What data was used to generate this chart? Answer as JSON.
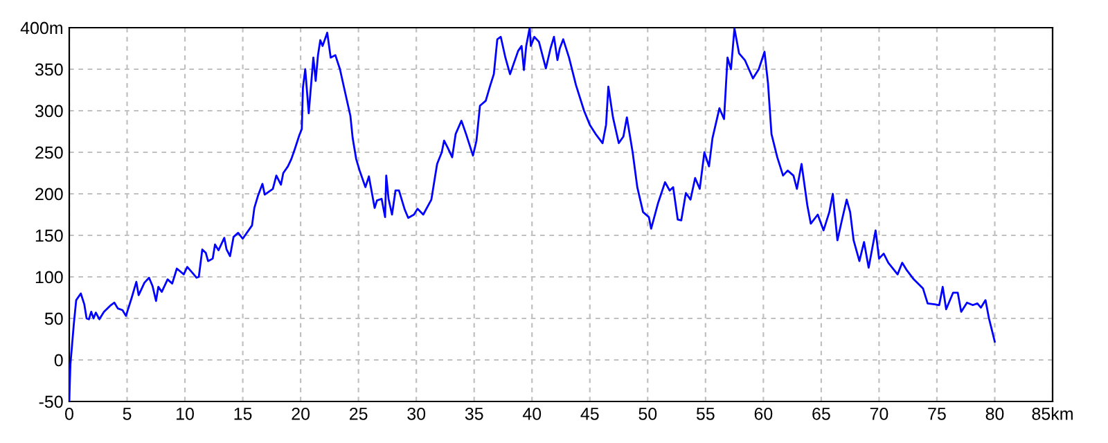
{
  "chart_data": {
    "type": "line",
    "grid": true,
    "marker": "none",
    "line_style": "solid",
    "xlim": [
      0,
      85
    ],
    "xticks": [
      0,
      5,
      10,
      15,
      20,
      25,
      30,
      35,
      40,
      45,
      50,
      55,
      60,
      65,
      70,
      75,
      80,
      {
        "value": 85,
        "label": "85km"
      }
    ],
    "ylim": [
      -50,
      400
    ],
    "yticks": [
      -50,
      0,
      50,
      100,
      150,
      200,
      250,
      300,
      350,
      {
        "value": 400,
        "label": "400m"
      }
    ],
    "series": [
      {
        "color": "#0000ff",
        "x": [
          0,
          0.1,
          0.2,
          0.4,
          0.6,
          1.0,
          1.3,
          1.5,
          1.7,
          1.9,
          2.1,
          2.3,
          2.6,
          3.0,
          3.6,
          3.9,
          4.2,
          4.6,
          4.9,
          5.4,
          5.8,
          6.0,
          6.5,
          6.9,
          7.2,
          7.5,
          7.7,
          8.0,
          8.5,
          8.9,
          9.3,
          9.9,
          10.2,
          10.7,
          11.0,
          11.2,
          11.5,
          11.8,
          12.0,
          12.4,
          12.6,
          12.9,
          13.4,
          13.6,
          13.9,
          14.2,
          14.6,
          15.0,
          15.8,
          16.0,
          16.3,
          16.7,
          16.9,
          17.6,
          17.9,
          18.3,
          18.5,
          18.9,
          19.2,
          19.5,
          19.9,
          20.1,
          20.2,
          20.4,
          20.7,
          21.1,
          21.3,
          21.5,
          21.7,
          21.9,
          22.3,
          22.6,
          23.0,
          23.4,
          23.8,
          24.3,
          24.5,
          24.8,
          25.1,
          25.6,
          25.9,
          26.4,
          26.6,
          27.0,
          27.3,
          27.4,
          27.6,
          27.9,
          28.2,
          28.5,
          29.0,
          29.3,
          29.8,
          30.1,
          30.6,
          31.3,
          31.6,
          31.8,
          32.2,
          32.4,
          32.7,
          33.1,
          33.4,
          33.9,
          34.3,
          34.9,
          35.2,
          35.5,
          36.0,
          36.4,
          36.7,
          37.0,
          37.3,
          37.7,
          38.1,
          38.8,
          39.1,
          39.3,
          39.5,
          39.8,
          39.9,
          40.2,
          40.6,
          41.2,
          41.6,
          41.9,
          42.2,
          42.4,
          42.7,
          43.2,
          43.8,
          44.5,
          45.0,
          45.5,
          46.1,
          46.4,
          46.6,
          47.0,
          47.5,
          47.9,
          48.2,
          48.7,
          49.1,
          49.6,
          50.1,
          50.3,
          50.9,
          51.5,
          51.9,
          52.2,
          52.6,
          52.9,
          53.3,
          53.7,
          54.1,
          54.5,
          54.9,
          55.3,
          55.6,
          56.2,
          56.6,
          56.9,
          57.2,
          57.5,
          57.9,
          58.4,
          59.1,
          59.6,
          60.1,
          60.4,
          60.7,
          61.2,
          61.7,
          62.1,
          62.6,
          62.9,
          63.3,
          63.8,
          64.1,
          64.7,
          65.2,
          65.7,
          66.0,
          66.4,
          66.8,
          67.2,
          67.5,
          67.8,
          68.3,
          68.7,
          69.1,
          69.7,
          70.0,
          70.4,
          70.8,
          71.6,
          72.0,
          72.4,
          73.0,
          73.8,
          74.2,
          74.8,
          75.2,
          75.5,
          75.8,
          76.4,
          76.8,
          77.1,
          77.6,
          78.1,
          78.5,
          78.8,
          79.2,
          79.5,
          80.0
        ],
        "values": [
          -50,
          -5,
          11,
          44,
          72,
          80,
          67,
          50,
          49,
          58,
          50,
          57,
          49,
          58,
          66,
          69,
          62,
          60,
          53,
          75,
          94,
          78,
          93,
          99,
          89,
          71,
          88,
          82,
          97,
          92,
          110,
          103,
          112,
          104,
          99,
          100,
          133,
          129,
          119,
          122,
          139,
          132,
          147,
          133,
          125,
          148,
          153,
          146,
          162,
          183,
          197,
          212,
          199,
          206,
          222,
          211,
          225,
          233,
          242,
          254,
          271,
          278,
          328,
          350,
          297,
          364,
          336,
          367,
          385,
          378,
          394,
          364,
          367,
          350,
          325,
          294,
          267,
          242,
          228,
          208,
          221,
          183,
          192,
          194,
          172,
          222,
          194,
          175,
          204,
          204,
          181,
          171,
          175,
          182,
          175,
          193,
          219,
          236,
          250,
          264,
          256,
          244,
          272,
          288,
          272,
          246,
          264,
          306,
          312,
          331,
          344,
          386,
          389,
          364,
          344,
          372,
          378,
          349,
          378,
          400,
          378,
          389,
          383,
          351,
          375,
          389,
          361,
          375,
          386,
          364,
          331,
          300,
          283,
          272,
          261,
          283,
          329,
          292,
          261,
          269,
          292,
          250,
          208,
          178,
          172,
          158,
          189,
          214,
          204,
          208,
          169,
          168,
          201,
          193,
          219,
          206,
          250,
          233,
          267,
          303,
          290,
          364,
          350,
          399,
          369,
          361,
          339,
          350,
          371,
          333,
          272,
          244,
          222,
          228,
          222,
          206,
          236,
          186,
          164,
          175,
          156,
          178,
          200,
          144,
          169,
          193,
          178,
          144,
          119,
          142,
          111,
          156,
          122,
          128,
          117,
          103,
          117,
          108,
          97,
          86,
          68,
          67,
          66,
          88,
          61,
          81,
          81,
          58,
          69,
          66,
          68,
          63,
          72,
          50,
          22
        ]
      }
    ]
  }
}
